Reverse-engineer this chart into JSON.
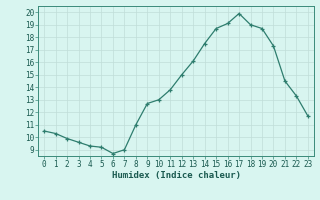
{
  "x": [
    0,
    1,
    2,
    3,
    4,
    5,
    6,
    7,
    8,
    9,
    10,
    11,
    12,
    13,
    14,
    15,
    16,
    17,
    18,
    19,
    20,
    21,
    22,
    23
  ],
  "y": [
    10.5,
    10.3,
    9.9,
    9.6,
    9.3,
    9.2,
    8.7,
    9.0,
    11.0,
    12.7,
    13.0,
    13.8,
    15.0,
    16.1,
    17.5,
    18.7,
    19.1,
    19.9,
    19.0,
    18.7,
    17.3,
    14.5,
    13.3,
    11.7
  ],
  "xlim": [
    -0.5,
    23.5
  ],
  "ylim": [
    8.5,
    20.5
  ],
  "yticks": [
    9,
    10,
    11,
    12,
    13,
    14,
    15,
    16,
    17,
    18,
    19,
    20
  ],
  "xticks": [
    0,
    1,
    2,
    3,
    4,
    5,
    6,
    7,
    8,
    9,
    10,
    11,
    12,
    13,
    14,
    15,
    16,
    17,
    18,
    19,
    20,
    21,
    22,
    23
  ],
  "xlabel": "Humidex (Indice chaleur)",
  "line_color": "#2e7d6e",
  "marker": "+",
  "bg_color": "#d8f5f0",
  "grid_color": "#c0ddd8",
  "tick_label_fontsize": 5.5,
  "xlabel_fontsize": 6.5,
  "spine_color": "#3a8a7a"
}
